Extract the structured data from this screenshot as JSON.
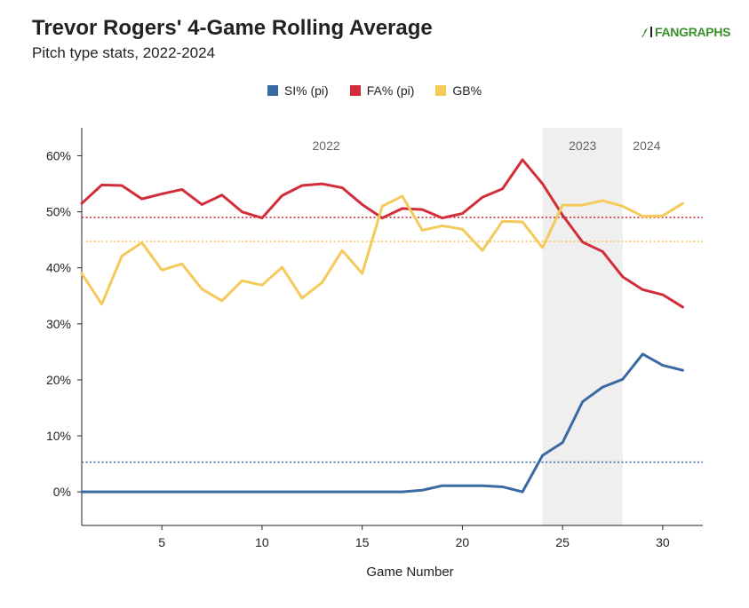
{
  "header": {
    "title": "Trevor Rogers' 4-Game Rolling Average",
    "subtitle": "Pitch type stats, 2022-2024",
    "logo": "FANGRAPHS"
  },
  "chart_data": {
    "type": "line",
    "title": "Trevor Rogers' 4-Game Rolling Average",
    "subtitle": "Pitch type stats, 2022-2024",
    "xlabel": "Game Number",
    "ylabel": "",
    "xlim": [
      1,
      32
    ],
    "ylim": [
      -6,
      65
    ],
    "x_ticks": [
      5,
      10,
      15,
      20,
      25,
      30
    ],
    "y_ticks": [
      0,
      10,
      20,
      30,
      40,
      50,
      60
    ],
    "y_tick_labels": [
      "0%",
      "10%",
      "20%",
      "30%",
      "40%",
      "50%",
      "60%"
    ],
    "grid": false,
    "legend_position": "top-center",
    "x": [
      1,
      2,
      3,
      4,
      5,
      6,
      7,
      8,
      9,
      10,
      11,
      12,
      13,
      14,
      15,
      16,
      17,
      18,
      19,
      20,
      21,
      22,
      23,
      24,
      25,
      26,
      27,
      28,
      29,
      30,
      31
    ],
    "series": [
      {
        "name": "SI% (pi)",
        "color": "#3a6aa4",
        "values": [
          0,
          0,
          0,
          0,
          0,
          0,
          0,
          0,
          0,
          0,
          0,
          0,
          0,
          0,
          0,
          0,
          0,
          0.3,
          1.1,
          1.1,
          1.1,
          0.9,
          0,
          6.5,
          8.8,
          16.1,
          18.7,
          20.1,
          24.6,
          22.6,
          21.7
        ],
        "average": 5.3
      },
      {
        "name": "FA% (pi)",
        "color": "#d22e39",
        "values": [
          51.5,
          54.8,
          54.7,
          52.3,
          53.2,
          54.0,
          51.3,
          53.0,
          50.0,
          48.9,
          52.9,
          54.7,
          55.0,
          54.3,
          51.3,
          48.9,
          50.6,
          50.4,
          48.9,
          49.7,
          52.6,
          54.1,
          59.3,
          55.0,
          49.4,
          44.6,
          42.9,
          38.4,
          36.1,
          35.2,
          33.0
        ],
        "average": 49.0
      },
      {
        "name": "GB%",
        "color": "#f5c95a",
        "values": [
          39.0,
          33.5,
          42.1,
          44.5,
          39.6,
          40.7,
          36.2,
          34.1,
          37.7,
          36.9,
          40.1,
          34.6,
          37.4,
          43.1,
          39.0,
          51.0,
          52.8,
          46.7,
          47.5,
          46.9,
          43.1,
          48.3,
          48.2,
          43.6,
          51.2,
          51.2,
          52.0,
          51.0,
          49.2,
          49.3,
          51.5
        ],
        "average": 44.7
      }
    ],
    "season_labels": [
      "2022",
      "2023",
      "2024"
    ],
    "season_boundaries": [
      24,
      28
    ],
    "highlight_season": "2023"
  }
}
